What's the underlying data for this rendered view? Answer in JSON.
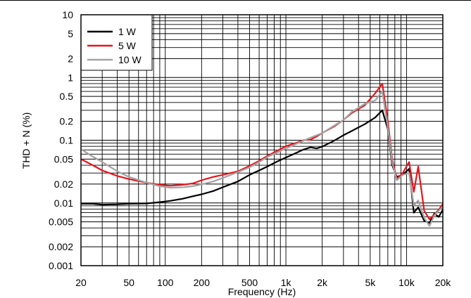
{
  "chart_data": {
    "type": "line",
    "title": "",
    "xlabel": "Frequency (Hz)",
    "ylabel": "THD + N (%)",
    "x_scale": "log",
    "y_scale": "log",
    "xlim": [
      20,
      20000
    ],
    "ylim": [
      0.001,
      10
    ],
    "grid": true,
    "legend_position": "top-left",
    "x_ticks": [
      {
        "value": 20,
        "label": "20"
      },
      {
        "value": 50,
        "label": "50"
      },
      {
        "value": 100,
        "label": "100"
      },
      {
        "value": 200,
        "label": "200"
      },
      {
        "value": 500,
        "label": "500"
      },
      {
        "value": 1000,
        "label": "1k"
      },
      {
        "value": 2000,
        "label": "2k"
      },
      {
        "value": 5000,
        "label": "5k"
      },
      {
        "value": 10000,
        "label": "10k"
      },
      {
        "value": 20000,
        "label": "20k"
      }
    ],
    "y_ticks": [
      {
        "value": 10,
        "label": "10"
      },
      {
        "value": 5,
        "label": "5"
      },
      {
        "value": 2,
        "label": "2"
      },
      {
        "value": 1,
        "label": "1"
      },
      {
        "value": 0.5,
        "label": "0.5"
      },
      {
        "value": 0.2,
        "label": "0.2"
      },
      {
        "value": 0.1,
        "label": "0.1"
      },
      {
        "value": 0.05,
        "label": "0.05"
      },
      {
        "value": 0.02,
        "label": "0.02"
      },
      {
        "value": 0.01,
        "label": "0.01"
      },
      {
        "value": 0.005,
        "label": "0.005"
      },
      {
        "value": 0.002,
        "label": "0.002"
      },
      {
        "value": 0.001,
        "label": "0.001"
      }
    ],
    "series": [
      {
        "name": "1 W",
        "color": "#000000",
        "points": [
          [
            20,
            0.0097
          ],
          [
            25,
            0.0097
          ],
          [
            30,
            0.0094
          ],
          [
            40,
            0.0095
          ],
          [
            50,
            0.0097
          ],
          [
            70,
            0.0098
          ],
          [
            90,
            0.0103
          ],
          [
            110,
            0.0108
          ],
          [
            140,
            0.0117
          ],
          [
            170,
            0.0128
          ],
          [
            200,
            0.0137
          ],
          [
            250,
            0.0155
          ],
          [
            300,
            0.0178
          ],
          [
            400,
            0.022
          ],
          [
            500,
            0.028
          ],
          [
            600,
            0.033
          ],
          [
            700,
            0.038
          ],
          [
            850,
            0.046
          ],
          [
            1000,
            0.053
          ],
          [
            1200,
            0.062
          ],
          [
            1400,
            0.071
          ],
          [
            1600,
            0.077
          ],
          [
            1800,
            0.074
          ],
          [
            2000,
            0.079
          ],
          [
            2500,
            0.098
          ],
          [
            3000,
            0.12
          ],
          [
            3500,
            0.14
          ],
          [
            4500,
            0.18
          ],
          [
            5500,
            0.23
          ],
          [
            6300,
            0.3
          ],
          [
            7000,
            0.15
          ],
          [
            7600,
            0.04
          ],
          [
            8300,
            0.026
          ],
          [
            9300,
            0.028
          ],
          [
            10500,
            0.035
          ],
          [
            11500,
            0.007
          ],
          [
            12500,
            0.0085
          ],
          [
            14000,
            0.0052
          ],
          [
            15500,
            0.0048
          ],
          [
            17000,
            0.0068
          ],
          [
            18500,
            0.006
          ],
          [
            20000,
            0.0078
          ]
        ]
      },
      {
        "name": "5 W",
        "color": "#e8141b",
        "points": [
          [
            20,
            0.05
          ],
          [
            25,
            0.04
          ],
          [
            30,
            0.033
          ],
          [
            40,
            0.027
          ],
          [
            50,
            0.024
          ],
          [
            70,
            0.021
          ],
          [
            90,
            0.0195
          ],
          [
            110,
            0.0188
          ],
          [
            140,
            0.0195
          ],
          [
            170,
            0.0205
          ],
          [
            200,
            0.023
          ],
          [
            250,
            0.026
          ],
          [
            300,
            0.028
          ],
          [
            400,
            0.032
          ],
          [
            500,
            0.039
          ],
          [
            600,
            0.047
          ],
          [
            700,
            0.056
          ],
          [
            850,
            0.068
          ],
          [
            1000,
            0.08
          ],
          [
            1200,
            0.09
          ],
          [
            1400,
            0.1
          ],
          [
            1600,
            0.102
          ],
          [
            1800,
            0.115
          ],
          [
            2000,
            0.13
          ],
          [
            2500,
            0.165
          ],
          [
            3000,
            0.21
          ],
          [
            3500,
            0.27
          ],
          [
            4500,
            0.36
          ],
          [
            5500,
            0.56
          ],
          [
            6300,
            0.8
          ],
          [
            7000,
            0.2
          ],
          [
            7600,
            0.05
          ],
          [
            8300,
            0.024
          ],
          [
            9300,
            0.03
          ],
          [
            10500,
            0.045
          ],
          [
            11500,
            0.015
          ],
          [
            12500,
            0.038
          ],
          [
            14000,
            0.0075
          ],
          [
            15500,
            0.0055
          ],
          [
            17000,
            0.0065
          ],
          [
            18500,
            0.0078
          ],
          [
            20000,
            0.0096
          ]
        ]
      },
      {
        "name": "10 W",
        "color": "#a3a3a3",
        "points": [
          [
            20,
            0.072
          ],
          [
            25,
            0.055
          ],
          [
            30,
            0.045
          ],
          [
            40,
            0.032
          ],
          [
            50,
            0.026
          ],
          [
            70,
            0.021
          ],
          [
            90,
            0.0185
          ],
          [
            110,
            0.0175
          ],
          [
            140,
            0.0178
          ],
          [
            170,
            0.0185
          ],
          [
            200,
            0.0198
          ],
          [
            250,
            0.022
          ],
          [
            300,
            0.025
          ],
          [
            400,
            0.031
          ],
          [
            500,
            0.037
          ],
          [
            600,
            0.045
          ],
          [
            700,
            0.054
          ],
          [
            850,
            0.064
          ],
          [
            1000,
            0.074
          ],
          [
            1200,
            0.086
          ],
          [
            1400,
            0.098
          ],
          [
            1600,
            0.11
          ],
          [
            1800,
            0.12
          ],
          [
            2000,
            0.13
          ],
          [
            2500,
            0.17
          ],
          [
            3000,
            0.21
          ],
          [
            3500,
            0.28
          ],
          [
            4500,
            0.38
          ],
          [
            5500,
            0.43
          ],
          [
            6300,
            0.6
          ],
          [
            7000,
            0.16
          ],
          [
            7600,
            0.045
          ],
          [
            8300,
            0.023
          ],
          [
            9300,
            0.028
          ],
          [
            10500,
            0.03
          ],
          [
            11500,
            0.009
          ],
          [
            12500,
            0.011
          ],
          [
            14000,
            0.0058
          ],
          [
            15500,
            0.0043
          ],
          [
            17000,
            0.0063
          ],
          [
            18500,
            0.0075
          ],
          [
            20000,
            0.0088
          ]
        ]
      }
    ]
  }
}
